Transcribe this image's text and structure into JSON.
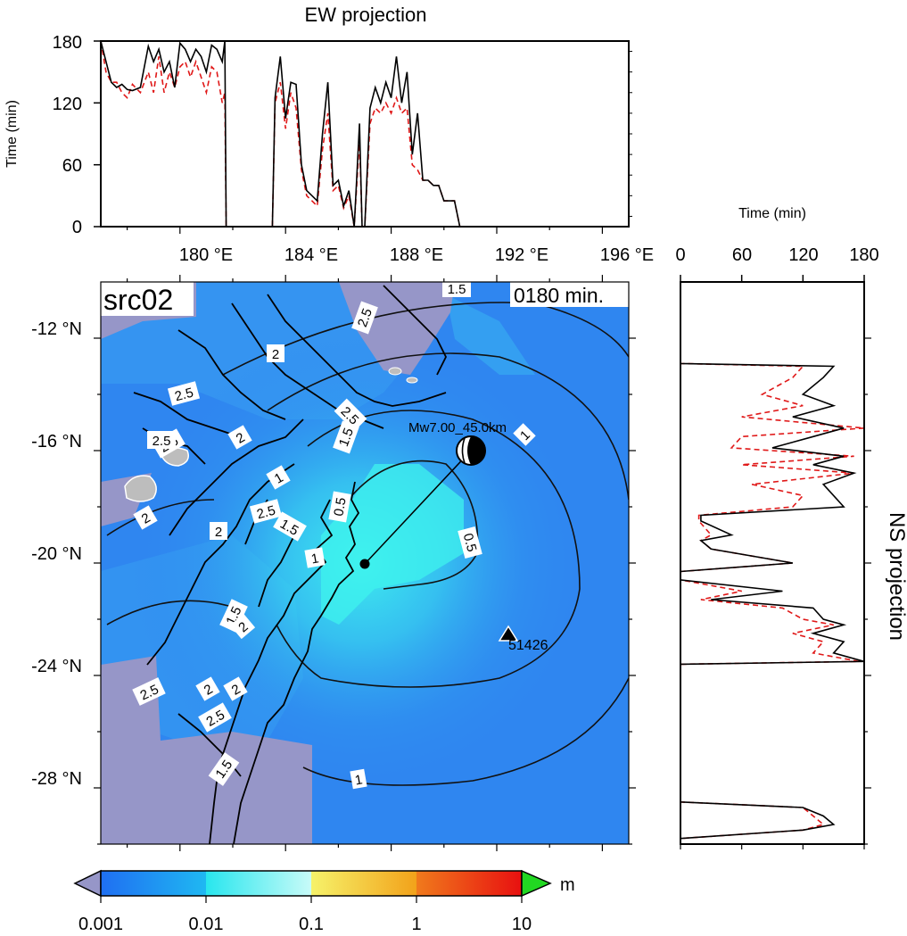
{
  "colors": {
    "ocean_base": "#2f86f0",
    "ocean_light": "#34c4f0",
    "wave_high": "#3ff3ee",
    "land": "#9696c8",
    "island": "#bdbdbd",
    "sim_line": "#000000",
    "obs_line": "#e01818"
  },
  "ew_panel": {
    "title": "EW projection",
    "ylabel": "Time (min)",
    "yticks": [
      "0",
      "60",
      "120",
      "180"
    ]
  },
  "ns_panel": {
    "title": "NS projection",
    "xlabel": "Time (min)",
    "xticks": [
      "0",
      "60",
      "120",
      "180"
    ]
  },
  "map": {
    "source_label": "src02",
    "time_label": "0180 min.",
    "lon_ticks": [
      "180 °E",
      "184 °E",
      "188 °E",
      "192 °E",
      "196 °E"
    ],
    "lat_ticks": [
      "-12 °N",
      "-16 °N",
      "-20 °N",
      "-24 °N",
      "-28 °N"
    ],
    "event_label": "Mw7.00_45.0km",
    "station_label": "51426",
    "contour_labels": [
      "0.5",
      "0.5",
      "1",
      "1",
      "1",
      "1",
      "1.5",
      "1.5",
      "1.5",
      "1.5",
      "1.5",
      "2",
      "2",
      "2",
      "2",
      "2",
      "2",
      "2",
      "2.5",
      "2.5",
      "2.5",
      "2.5",
      "2.5",
      "2.5",
      "2.5",
      "2.5"
    ]
  },
  "colorbar": {
    "tick_labels": [
      "0.001",
      "0.01",
      "0.1",
      "1",
      "10"
    ],
    "unit": "m",
    "colors": [
      "#1f6ff2",
      "#1fb8f2",
      "#38f0ec",
      "#f0f070",
      "#f2b020",
      "#f26020",
      "#e81818"
    ],
    "under_color": "#9696c8",
    "over_color": "#22d822"
  },
  "chart_data": [
    {
      "type": "line",
      "title": "EW projection",
      "xlabel": "",
      "ylabel": "Time (min)",
      "xlim": [
        177,
        197
      ],
      "ylim": [
        0,
        180
      ],
      "series": [
        {
          "x": [
            177.0,
            177.2,
            177.4,
            177.6,
            177.8,
            178.0,
            178.2,
            178.5,
            178.8,
            179.0,
            179.2,
            179.4,
            179.6,
            179.8,
            180.0,
            180.2,
            180.4,
            180.6,
            180.8,
            181.0,
            181.2,
            181.4,
            181.6,
            181.7,
            181.75,
            183.5,
            183.6,
            183.8,
            184.0,
            184.2,
            184.4,
            184.6,
            184.8,
            185.0,
            185.2,
            185.4,
            185.6,
            185.8,
            186.0,
            186.2,
            186.4,
            186.6,
            186.8,
            186.9,
            187.0,
            187.2,
            187.4,
            187.6,
            187.8,
            188.0,
            188.2,
            188.4,
            188.6,
            188.8,
            189.0,
            189.2,
            189.4,
            189.6,
            189.8,
            190.0,
            190.2,
            190.4,
            190.6,
            190.7
          ],
          "y": [
            180,
            160,
            140,
            135,
            138,
            133,
            132,
            135,
            175,
            160,
            172,
            150,
            160,
            135,
            178,
            172,
            160,
            172,
            165,
            150,
            176,
            172,
            160,
            180,
            0,
            0,
            125,
            165,
            105,
            140,
            138,
            60,
            35,
            30,
            25,
            90,
            140,
            40,
            45,
            20,
            35,
            0,
            100,
            0,
            0,
            115,
            135,
            120,
            140,
            125,
            165,
            120,
            150,
            70,
            110,
            45,
            45,
            40,
            40,
            25,
            25,
            25,
            0,
            0
          ]
        },
        {
          "x": [
            177.0,
            177.2,
            177.4,
            177.6,
            177.8,
            178.0,
            178.2,
            178.5,
            178.8,
            179.0,
            179.2,
            179.4,
            179.6,
            179.8,
            180.0,
            180.2,
            180.4,
            180.6,
            180.8,
            181.0,
            181.2,
            181.4,
            181.6,
            181.7,
            181.75,
            183.5,
            183.6,
            183.8,
            184.0,
            184.2,
            184.4,
            184.6,
            184.8,
            185.0,
            185.2,
            185.4,
            185.6,
            185.8,
            186.0,
            186.2,
            186.4,
            186.6,
            186.8,
            186.9,
            187.0,
            187.2,
            187.4,
            187.6,
            187.8,
            188.0,
            188.2,
            188.4,
            188.6,
            188.8,
            189.0,
            189.2,
            189.4,
            189.6,
            189.8,
            190.0,
            190.2,
            190.4,
            190.6,
            190.7
          ],
          "y": [
            180,
            150,
            140,
            140,
            130,
            125,
            138,
            130,
            150,
            130,
            165,
            130,
            150,
            135,
            155,
            160,
            145,
            160,
            145,
            130,
            155,
            150,
            120,
            130,
            0,
            0,
            120,
            140,
            95,
            130,
            115,
            55,
            30,
            25,
            20,
            75,
            110,
            35,
            40,
            18,
            30,
            0,
            85,
            0,
            0,
            100,
            115,
            110,
            120,
            110,
            125,
            110,
            115,
            60,
            55,
            45,
            45,
            40,
            40,
            25,
            25,
            25,
            0,
            0
          ]
        }
      ]
    },
    {
      "type": "line",
      "title": "NS projection",
      "xlabel": "Time (min)",
      "ylabel": "",
      "xlim": [
        0,
        180
      ],
      "ylim": [
        -30,
        -10
      ],
      "series": [
        {
          "y": [
            -10.0,
            -12.9,
            -13.0,
            -13.4,
            -14.0,
            -14.4,
            -14.8,
            -15.2,
            -15.5,
            -15.9,
            -16.2,
            -16.5,
            -16.8,
            -17.2,
            -17.6,
            -18.0,
            -18.3,
            -18.5,
            -19.0,
            -19.2,
            -19.5,
            -20.0,
            -20.3,
            -20.6,
            -21.0,
            -21.3,
            -21.6,
            -22.0,
            -22.2,
            -22.5,
            -22.8,
            -23.2,
            -23.5,
            -23.6,
            -23.7,
            -28.5,
            -28.7,
            -29.0,
            -29.3,
            -29.5,
            -29.8
          ],
          "x": [
            0,
            0,
            150,
            140,
            120,
            150,
            110,
            160,
            130,
            90,
            160,
            130,
            170,
            140,
            150,
            160,
            20,
            20,
            50,
            20,
            30,
            110,
            0,
            0,
            100,
            30,
            130,
            140,
            160,
            130,
            160,
            150,
            180,
            0,
            0,
            0,
            120,
            140,
            150,
            120,
            0
          ]
        },
        {
          "y": [
            -10.0,
            -12.9,
            -13.0,
            -13.4,
            -14.0,
            -14.4,
            -14.8,
            -15.2,
            -15.5,
            -15.9,
            -16.2,
            -16.5,
            -16.8,
            -17.2,
            -17.6,
            -18.0,
            -18.3,
            -18.5,
            -19.0,
            -19.2,
            -19.5,
            -20.0,
            -20.3,
            -20.6,
            -21.0,
            -21.3,
            -21.6,
            -22.0,
            -22.2,
            -22.5,
            -22.8,
            -23.2,
            -23.5,
            -23.6,
            -23.7,
            -28.5,
            -28.7,
            -29.0,
            -29.3,
            -29.5,
            -29.8
          ],
          "x": [
            0,
            0,
            120,
            110,
            80,
            120,
            60,
            180,
            60,
            50,
            170,
            60,
            170,
            70,
            120,
            110,
            18,
            18,
            30,
            20,
            30,
            110,
            0,
            0,
            60,
            20,
            100,
            120,
            150,
            110,
            140,
            130,
            175,
            0,
            0,
            0,
            120,
            130,
            140,
            120,
            0
          ]
        }
      ]
    }
  ]
}
